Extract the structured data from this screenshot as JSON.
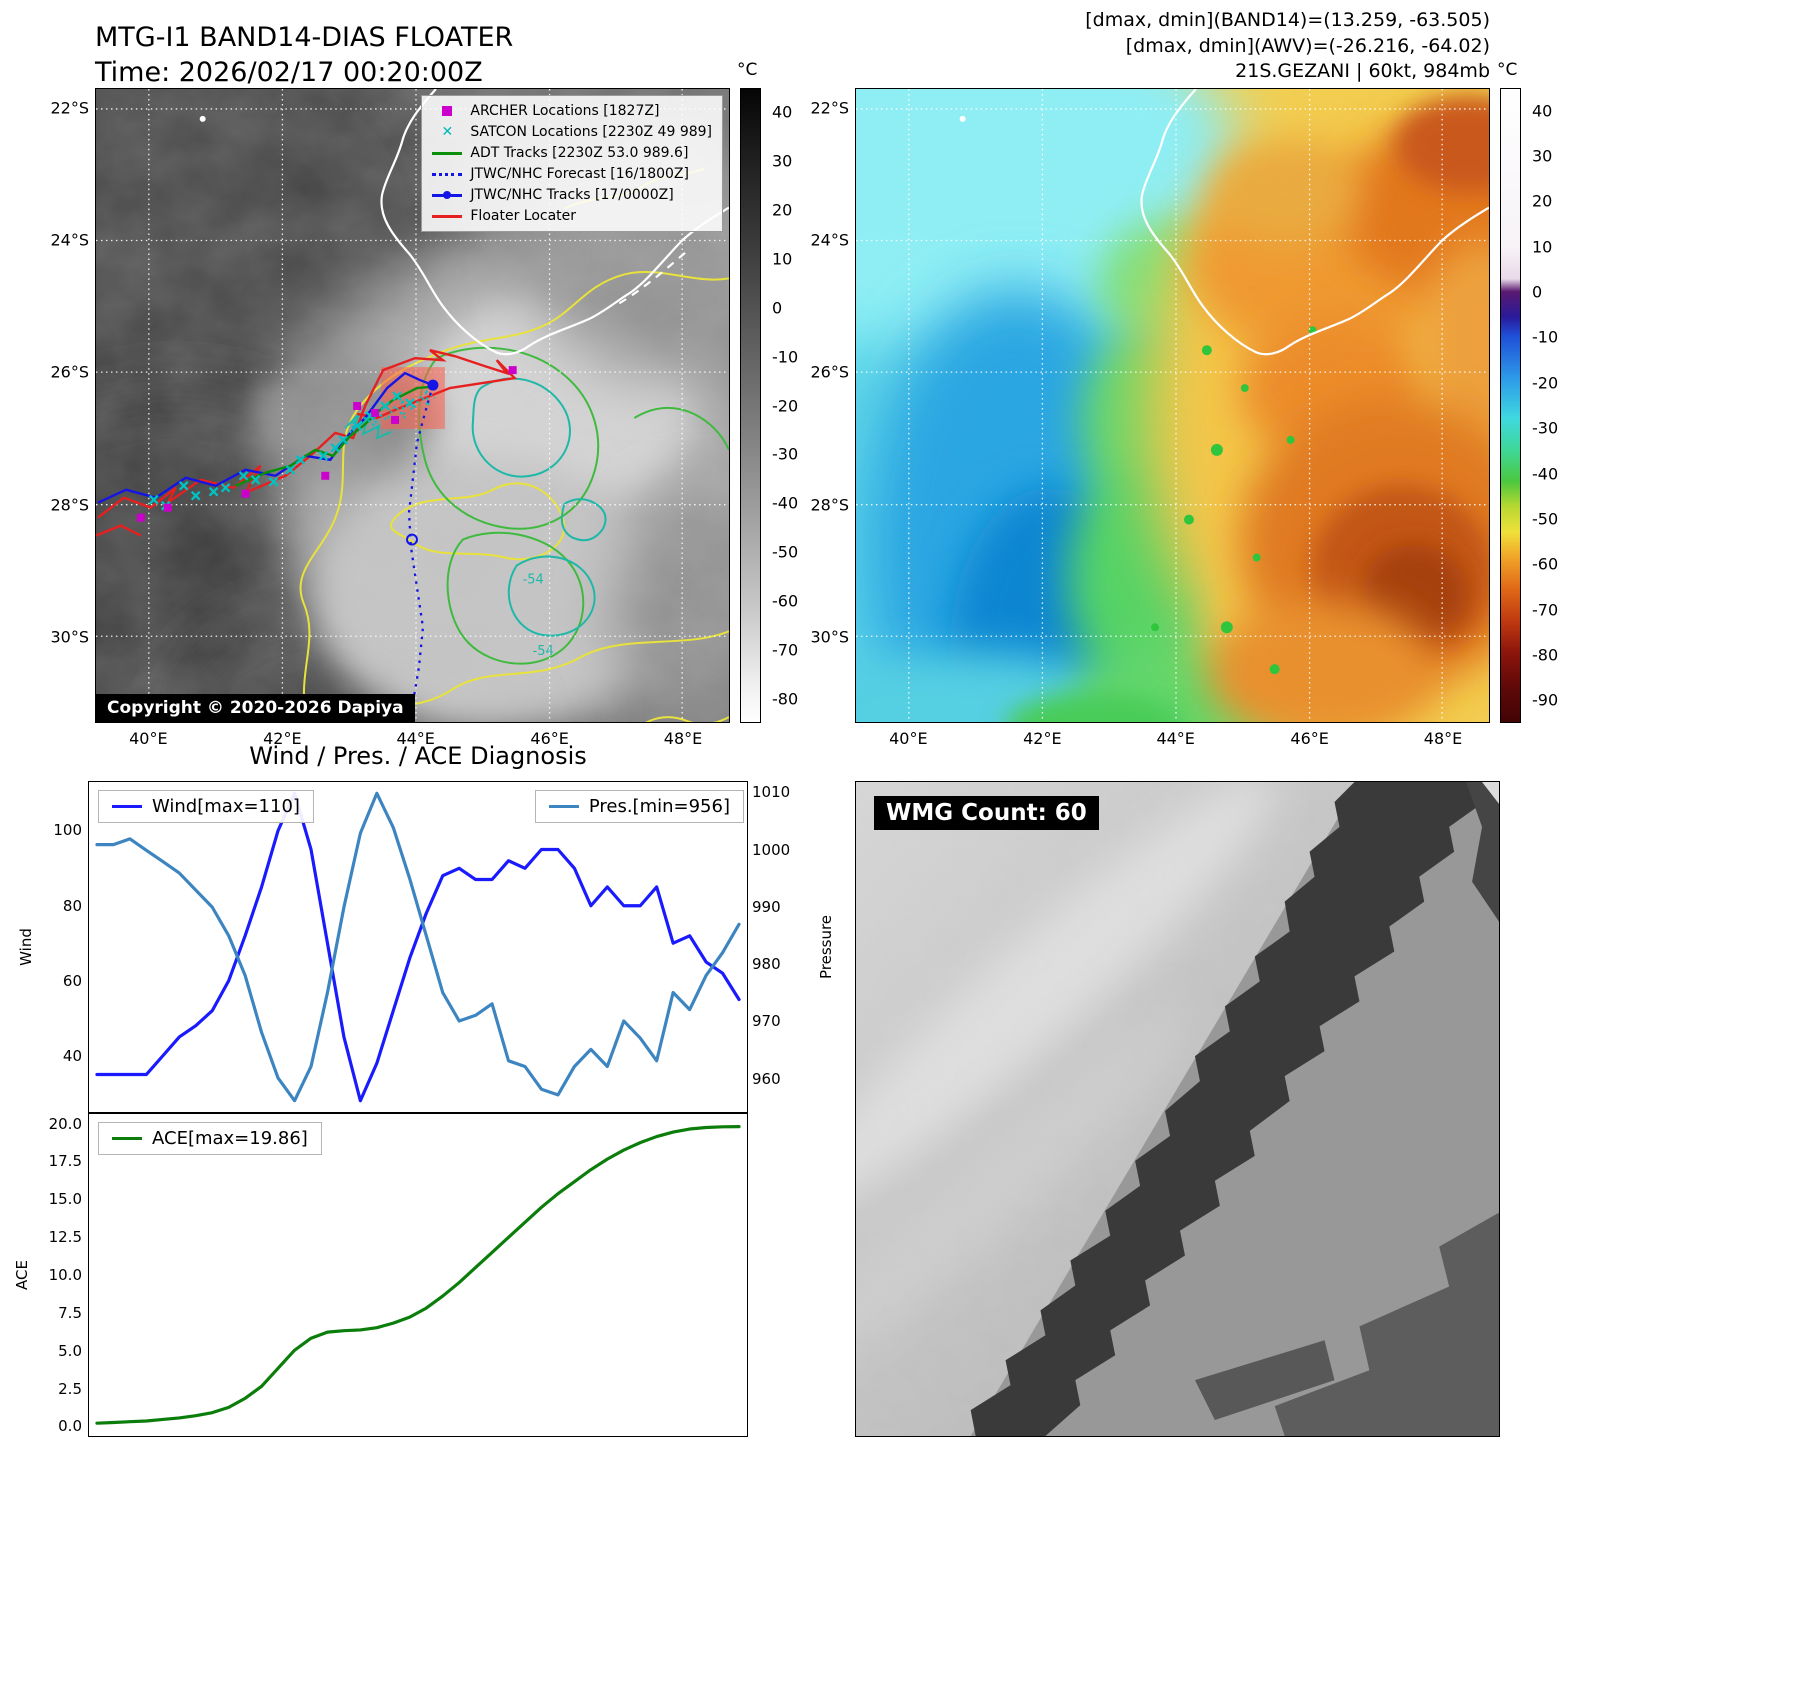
{
  "left_panel": {
    "title": "MTG-I1 BAND14-DIAS FLOATER",
    "subtitle": "Time: 2026/02/17 00:20:00Z",
    "copyright": "Copyright © 2020-2026 Dapiya",
    "contour_labels": [
      "-54",
      "-54"
    ],
    "lat_ticks": [
      "22°S",
      "24°S",
      "26°S",
      "28°S",
      "30°S"
    ],
    "lon_ticks": [
      "40°E",
      "42°E",
      "44°E",
      "46°E",
      "48°E"
    ],
    "colorbar": {
      "unit": "°C",
      "vmax": 45,
      "vmin": -85,
      "ticks": [
        40,
        30,
        20,
        10,
        0,
        -10,
        -20,
        -30,
        -40,
        -50,
        -60,
        -70,
        -80
      ]
    },
    "legend": [
      {
        "label": "ARCHER Locations [1827Z]",
        "marker": "square",
        "color": "#cc00cc"
      },
      {
        "label": "SATCON Locations [2230Z 49 989]",
        "marker": "x",
        "color": "#00b8b8"
      },
      {
        "label": "ADT Tracks [2230Z 53.0 989.6]",
        "marker": "line",
        "color": "#0a8f0a"
      },
      {
        "label": "JTWC/NHC Forecast [16/1800Z]",
        "marker": "dotted",
        "color": "#1414e6"
      },
      {
        "label": "JTWC/NHC Tracks [17/0000Z]",
        "marker": "line-dot",
        "color": "#1414e6"
      },
      {
        "label": "Floater Locater",
        "marker": "line",
        "color": "#e62020"
      }
    ]
  },
  "right_panel": {
    "info_lines": [
      "[dmax, dmin](BAND14)=(13.259, -63.505)",
      "[dmax, dmin](AWV)=(-26.216, -64.02)",
      "21S.GEZANI | 60kt, 984mb"
    ],
    "lat_ticks": [
      "22°S",
      "24°S",
      "26°S",
      "28°S",
      "30°S"
    ],
    "lon_ticks": [
      "40°E",
      "42°E",
      "44°E",
      "46°E",
      "48°E"
    ],
    "colorbar": {
      "unit": "°C",
      "vmax": 45,
      "vmin": -95,
      "ticks": [
        40,
        30,
        20,
        10,
        0,
        -10,
        -20,
        -30,
        -40,
        -50,
        -60,
        -70,
        -80,
        -90
      ]
    }
  },
  "wmg": {
    "label": "WMG Count: 60"
  },
  "chart_data": [
    {
      "type": "line",
      "title": "Wind / Pres. / ACE Diagnosis",
      "grid": false,
      "legend_position": "top-left and top-right",
      "series": [
        {
          "name": "Wind[max=110]",
          "color": "#1a1aff",
          "axis": "left",
          "values": [
            35,
            35,
            35,
            35,
            40,
            45,
            48,
            52,
            60,
            72,
            85,
            100,
            110,
            95,
            70,
            45,
            28,
            38,
            52,
            66,
            78,
            88,
            90,
            87,
            87,
            92,
            90,
            95,
            95,
            90,
            80,
            85,
            80,
            80,
            85,
            70,
            72,
            65,
            62,
            55
          ]
        },
        {
          "name": "Pres.[min=956]",
          "color": "#3d85c0",
          "axis": "right",
          "values": [
            1001,
            1001,
            1002,
            1000,
            998,
            996,
            993,
            990,
            985,
            978,
            968,
            960,
            956,
            962,
            975,
            990,
            1003,
            1010,
            1004,
            995,
            985,
            975,
            970,
            971,
            973,
            963,
            962,
            958,
            957,
            962,
            965,
            962,
            970,
            967,
            963,
            975,
            972,
            978,
            982,
            987
          ]
        }
      ],
      "left_axis": {
        "label": "Wind",
        "min": 25,
        "max": 113,
        "ticks": [
          40,
          60,
          80,
          100
        ]
      },
      "right_axis": {
        "label": "Pressure",
        "min": 954,
        "max": 1012,
        "ticks": [
          960,
          970,
          980,
          990,
          1000,
          1010
        ]
      }
    },
    {
      "type": "line",
      "title": "",
      "grid": false,
      "legend_position": "top-left",
      "series": [
        {
          "name": "ACE[max=19.86]",
          "color": "#0a7d0a",
          "axis": "left",
          "values": [
            0.15,
            0.2,
            0.25,
            0.3,
            0.4,
            0.5,
            0.65,
            0.85,
            1.2,
            1.8,
            2.6,
            3.8,
            5.0,
            5.8,
            6.2,
            6.3,
            6.35,
            6.5,
            6.8,
            7.2,
            7.8,
            8.6,
            9.5,
            10.5,
            11.5,
            12.5,
            13.5,
            14.5,
            15.4,
            16.2,
            17.0,
            17.7,
            18.3,
            18.8,
            19.2,
            19.5,
            19.7,
            19.8,
            19.85,
            19.86
          ]
        }
      ],
      "left_axis": {
        "label": "ACE",
        "min": -0.7,
        "max": 20.7,
        "ticks": [
          "0.0",
          "2.5",
          "5.0",
          "7.5",
          "10.0",
          "12.5",
          "15.0",
          "17.5",
          "20.0"
        ]
      }
    }
  ]
}
